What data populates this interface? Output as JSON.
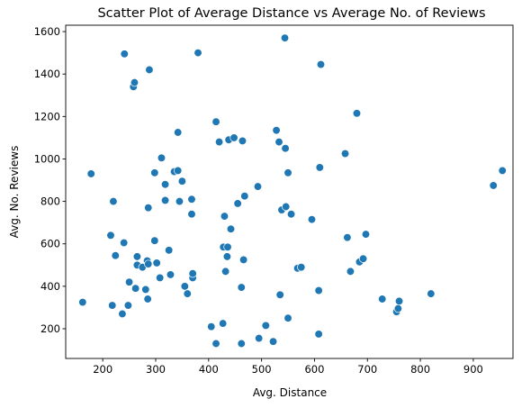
{
  "chart_data": {
    "type": "scatter",
    "title": "Scatter Plot of Average Distance vs Average No. of Reviews",
    "xlabel": "Avg. Distance",
    "ylabel": "Avg. No. Reviews",
    "xlim": [
      130,
      975
    ],
    "ylim": [
      60,
      1630
    ],
    "xticks": [
      200,
      300,
      400,
      500,
      600,
      700,
      800,
      900
    ],
    "yticks": [
      200,
      400,
      600,
      800,
      1000,
      1200,
      1400,
      1600
    ],
    "grid": false,
    "marker_color": "#1f77b4",
    "points": [
      {
        "x": 162,
        "y": 325
      },
      {
        "x": 178,
        "y": 930
      },
      {
        "x": 215,
        "y": 640
      },
      {
        "x": 218,
        "y": 310
      },
      {
        "x": 220,
        "y": 800
      },
      {
        "x": 224,
        "y": 545
      },
      {
        "x": 237,
        "y": 270
      },
      {
        "x": 240,
        "y": 605
      },
      {
        "x": 241,
        "y": 1495
      },
      {
        "x": 248,
        "y": 310
      },
      {
        "x": 250,
        "y": 420
      },
      {
        "x": 258,
        "y": 1340
      },
      {
        "x": 260,
        "y": 1360
      },
      {
        "x": 262,
        "y": 390
      },
      {
        "x": 265,
        "y": 540
      },
      {
        "x": 265,
        "y": 500
      },
      {
        "x": 275,
        "y": 490
      },
      {
        "x": 281,
        "y": 385
      },
      {
        "x": 284,
        "y": 520
      },
      {
        "x": 285,
        "y": 340
      },
      {
        "x": 286,
        "y": 505
      },
      {
        "x": 286,
        "y": 770
      },
      {
        "x": 288,
        "y": 1420
      },
      {
        "x": 298,
        "y": 615
      },
      {
        "x": 298,
        "y": 935
      },
      {
        "x": 302,
        "y": 510
      },
      {
        "x": 308,
        "y": 440
      },
      {
        "x": 311,
        "y": 1005
      },
      {
        "x": 318,
        "y": 880
      },
      {
        "x": 318,
        "y": 805
      },
      {
        "x": 325,
        "y": 570
      },
      {
        "x": 328,
        "y": 455
      },
      {
        "x": 335,
        "y": 940
      },
      {
        "x": 342,
        "y": 945
      },
      {
        "x": 342,
        "y": 1125
      },
      {
        "x": 345,
        "y": 800
      },
      {
        "x": 350,
        "y": 895
      },
      {
        "x": 355,
        "y": 400
      },
      {
        "x": 360,
        "y": 365
      },
      {
        "x": 368,
        "y": 810
      },
      {
        "x": 368,
        "y": 740
      },
      {
        "x": 370,
        "y": 440
      },
      {
        "x": 370,
        "y": 460
      },
      {
        "x": 380,
        "y": 1500
      },
      {
        "x": 405,
        "y": 210
      },
      {
        "x": 414,
        "y": 1175
      },
      {
        "x": 414,
        "y": 130
      },
      {
        "x": 420,
        "y": 1080
      },
      {
        "x": 427,
        "y": 225
      },
      {
        "x": 428,
        "y": 585
      },
      {
        "x": 430,
        "y": 730
      },
      {
        "x": 432,
        "y": 470
      },
      {
        "x": 435,
        "y": 540
      },
      {
        "x": 436,
        "y": 585
      },
      {
        "x": 438,
        "y": 1090
      },
      {
        "x": 442,
        "y": 670
      },
      {
        "x": 448,
        "y": 1100
      },
      {
        "x": 455,
        "y": 790
      },
      {
        "x": 462,
        "y": 395
      },
      {
        "x": 462,
        "y": 130
      },
      {
        "x": 464,
        "y": 1085
      },
      {
        "x": 466,
        "y": 525
      },
      {
        "x": 468,
        "y": 825
      },
      {
        "x": 493,
        "y": 870
      },
      {
        "x": 495,
        "y": 155
      },
      {
        "x": 508,
        "y": 215
      },
      {
        "x": 522,
        "y": 140
      },
      {
        "x": 528,
        "y": 1135
      },
      {
        "x": 533,
        "y": 1080
      },
      {
        "x": 535,
        "y": 360
      },
      {
        "x": 538,
        "y": 760
      },
      {
        "x": 544,
        "y": 1570
      },
      {
        "x": 545,
        "y": 1050
      },
      {
        "x": 546,
        "y": 775
      },
      {
        "x": 550,
        "y": 250
      },
      {
        "x": 550,
        "y": 935
      },
      {
        "x": 556,
        "y": 740
      },
      {
        "x": 568,
        "y": 485
      },
      {
        "x": 575,
        "y": 490
      },
      {
        "x": 595,
        "y": 715
      },
      {
        "x": 608,
        "y": 380
      },
      {
        "x": 608,
        "y": 175
      },
      {
        "x": 610,
        "y": 960
      },
      {
        "x": 612,
        "y": 1445
      },
      {
        "x": 658,
        "y": 1025
      },
      {
        "x": 662,
        "y": 630
      },
      {
        "x": 668,
        "y": 470
      },
      {
        "x": 680,
        "y": 1215
      },
      {
        "x": 685,
        "y": 515
      },
      {
        "x": 692,
        "y": 530
      },
      {
        "x": 697,
        "y": 645
      },
      {
        "x": 728,
        "y": 340
      },
      {
        "x": 755,
        "y": 280
      },
      {
        "x": 758,
        "y": 295
      },
      {
        "x": 760,
        "y": 330
      },
      {
        "x": 820,
        "y": 365
      },
      {
        "x": 938,
        "y": 875
      },
      {
        "x": 955,
        "y": 945
      }
    ]
  }
}
